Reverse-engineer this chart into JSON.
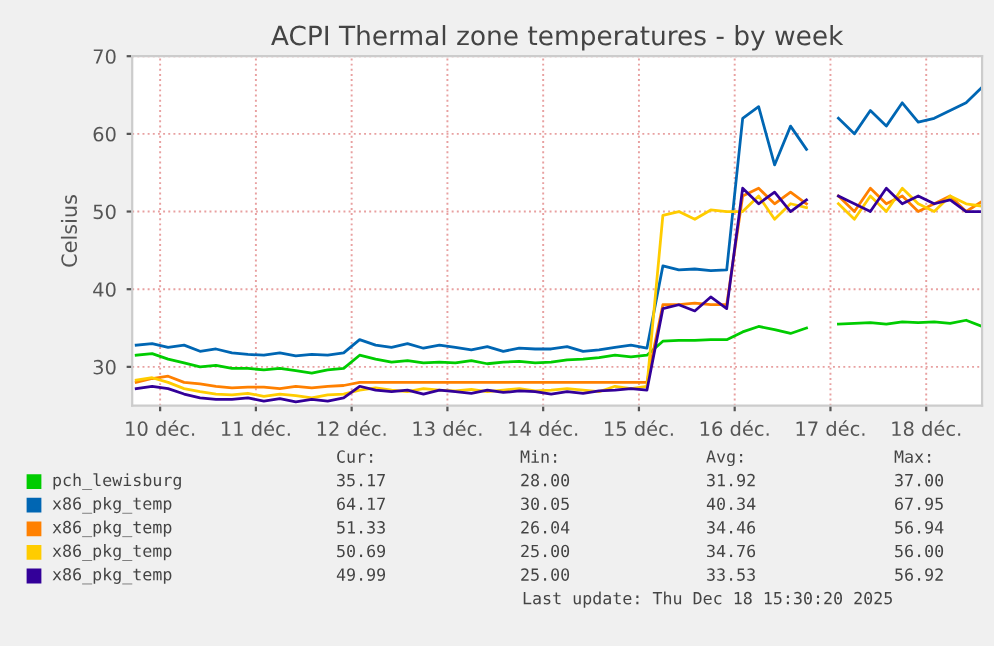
{
  "chart_data": {
    "type": "line",
    "title": "ACPI Thermal zone temperatures - by week",
    "ylabel": "Celsius",
    "x": [
      "2025-12-09T18:00",
      "2025-12-09T22:00",
      "2025-12-10T02:00",
      "2025-12-10T06:00",
      "2025-12-10T10:00",
      "2025-12-10T14:00",
      "2025-12-10T18:00",
      "2025-12-10T22:00",
      "2025-12-11T02:00",
      "2025-12-11T06:00",
      "2025-12-11T10:00",
      "2025-12-11T14:00",
      "2025-12-11T18:00",
      "2025-12-11T22:00",
      "2025-12-12T02:00",
      "2025-12-12T06:00",
      "2025-12-12T10:00",
      "2025-12-12T14:00",
      "2025-12-12T18:00",
      "2025-12-12T22:00",
      "2025-12-13T02:00",
      "2025-12-13T06:00",
      "2025-12-13T10:00",
      "2025-12-13T14:00",
      "2025-12-13T18:00",
      "2025-12-13T22:00",
      "2025-12-14T02:00",
      "2025-12-14T06:00",
      "2025-12-14T10:00",
      "2025-12-14T14:00",
      "2025-12-14T18:00",
      "2025-12-14T22:00",
      "2025-12-15T02:00",
      "2025-12-15T06:00",
      "2025-12-15T10:00",
      "2025-12-15T14:00",
      "2025-12-15T18:00",
      "2025-12-15T22:00",
      "2025-12-16T02:00",
      "2025-12-16T06:00",
      "2025-12-16T10:00",
      "2025-12-16T14:00",
      "2025-12-16T18:00",
      "2025-12-16T22:00",
      "2025-12-17T02:00",
      "2025-12-17T06:00",
      "2025-12-17T10:00",
      "2025-12-17T14:00",
      "2025-12-17T18:00",
      "2025-12-17T22:00",
      "2025-12-18T02:00",
      "2025-12-18T06:00",
      "2025-12-18T10:00",
      "2025-12-18T14:00"
    ],
    "series": [
      {
        "name": "pch_lewisburg",
        "color": "#00cc00",
        "values": [
          31.5,
          31.7,
          31,
          30.5,
          30,
          30.2,
          29.8,
          29.8,
          29.6,
          29.8,
          29.5,
          29.2,
          29.6,
          29.8,
          31.5,
          31,
          30.6,
          30.8,
          30.5,
          30.6,
          30.5,
          30.8,
          30.4,
          30.6,
          30.7,
          30.5,
          30.6,
          30.9,
          31,
          31.2,
          31.5,
          31.3,
          31.5,
          33.3,
          33.4,
          33.4,
          33.5,
          33.5,
          34.5,
          35.2,
          34.8,
          34.3,
          35,
          null,
          35.5,
          35.6,
          35.7,
          35.5,
          35.8,
          35.7,
          35.8,
          35.6,
          36,
          35.2
        ]
      },
      {
        "name": "x86_pkg_temp",
        "color": "#0066b3",
        "values": [
          32.8,
          33,
          32.5,
          32.8,
          32,
          32.3,
          31.8,
          31.6,
          31.5,
          31.8,
          31.4,
          31.6,
          31.5,
          31.8,
          33.5,
          32.8,
          32.5,
          33,
          32.4,
          32.8,
          32.5,
          32.2,
          32.6,
          32,
          32.4,
          32.3,
          32.3,
          32.6,
          32,
          32.2,
          32.5,
          32.8,
          32.4,
          43,
          42.5,
          42.6,
          42.4,
          42.5,
          62,
          63.5,
          56,
          61,
          58,
          null,
          62,
          60,
          63,
          61,
          64,
          61.5,
          62,
          63,
          64,
          66
        ]
      },
      {
        "name": "x86_pkg_temp",
        "color": "#ff8000",
        "values": [
          28,
          28.5,
          28.8,
          28,
          27.8,
          27.5,
          27.3,
          27.4,
          27.4,
          27.2,
          27.5,
          27.3,
          27.5,
          27.6,
          28,
          28,
          28,
          28,
          28,
          28,
          28,
          28,
          28,
          28,
          28,
          28,
          28,
          28,
          28,
          28,
          28,
          28,
          28,
          38,
          38,
          38.2,
          38,
          38,
          52,
          53,
          51,
          52.5,
          51,
          null,
          52,
          50,
          53,
          51,
          52,
          50,
          51,
          52,
          50,
          51.3
        ]
      },
      {
        "name": "x86_pkg_temp",
        "color": "#ffcc00",
        "values": [
          28.3,
          28.6,
          28,
          27.2,
          26.8,
          26.5,
          26.4,
          26.6,
          26.2,
          26.5,
          26.3,
          26,
          26.4,
          26.5,
          27,
          27.3,
          27,
          26.8,
          27.2,
          27,
          26.9,
          27.1,
          26.8,
          27,
          27.2,
          26.9,
          27,
          27.2,
          27,
          26.8,
          27.5,
          27.2,
          27.5,
          49.5,
          50,
          49,
          50.2,
          50,
          50,
          52,
          49,
          51,
          50.5,
          null,
          51,
          49,
          52,
          50,
          53,
          51,
          50,
          52,
          51,
          50.7
        ]
      },
      {
        "name": "x86_pkg_temp",
        "color": "#330099",
        "values": [
          27.2,
          27.5,
          27.2,
          26.5,
          26,
          25.8,
          25.8,
          26,
          25.6,
          25.9,
          25.5,
          25.8,
          25.6,
          26,
          27.5,
          27,
          26.8,
          27,
          26.5,
          27,
          26.8,
          26.6,
          27,
          26.7,
          26.9,
          26.8,
          26.5,
          26.8,
          26.6,
          26.9,
          27,
          27.2,
          27,
          37.5,
          38,
          37.2,
          39,
          37.5,
          53,
          51,
          52.5,
          50,
          51.5,
          null,
          52,
          51,
          50,
          53,
          51,
          52,
          51,
          51.5,
          50,
          50
        ]
      }
    ],
    "xlim": [
      "2025-12-09T17:00",
      "2025-12-18T14:00"
    ],
    "xticks": [
      {
        "value": "2025-12-10",
        "label": "10 déc."
      },
      {
        "value": "2025-12-11",
        "label": "11 déc."
      },
      {
        "value": "2025-12-12",
        "label": "12 déc."
      },
      {
        "value": "2025-12-13",
        "label": "13 déc."
      },
      {
        "value": "2025-12-14",
        "label": "14 déc."
      },
      {
        "value": "2025-12-15",
        "label": "15 déc."
      },
      {
        "value": "2025-12-16",
        "label": "16 déc."
      },
      {
        "value": "2025-12-17",
        "label": "17 déc."
      },
      {
        "value": "2025-12-18",
        "label": "18 déc."
      }
    ],
    "ylim": [
      25,
      70
    ],
    "yticks": [
      30,
      40,
      50,
      60,
      70
    ],
    "grid": true,
    "legend": "bottom",
    "marker": "none",
    "line_style": "solid",
    "annotations": [
      "Cur:",
      "Min:",
      "Avg:",
      "Max:",
      "35.17",
      "28.00",
      "31.92",
      "37.00",
      "64.17",
      "30.05",
      "40.34",
      "67.95",
      "51.33",
      "26.04",
      "34.46",
      "56.94",
      "50.69",
      "25.00",
      "34.76",
      "56.00",
      "49.99",
      "25.00",
      "33.53",
      "56.92",
      "Last update: Thu Dec 18 15:30:20 2025"
    ]
  }
}
